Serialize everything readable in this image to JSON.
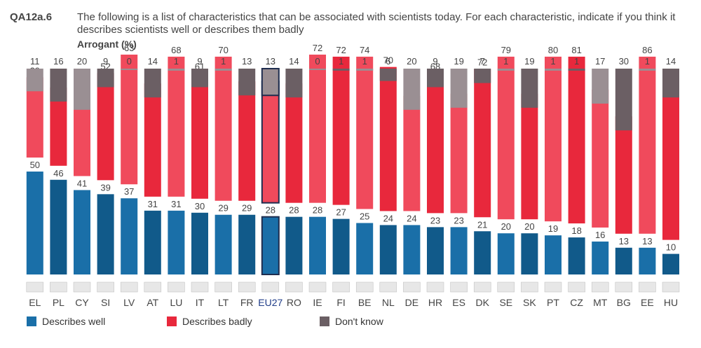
{
  "header": {
    "qid": "QA12a.6",
    "question": "The following is a list of characteristics that can be associated with scientists today. For each characteristic, indicate if you think it describes scientists well or describes them badly",
    "subtitle": "Arrogant  (%)"
  },
  "colors": {
    "describes_well": "#1a6fa8",
    "describes_well_dark": "#115a8a",
    "describes_badly": "#e8283c",
    "describes_badly_light": "#f04a5c",
    "dont_know": "#6b5f64",
    "dont_know_light": "#9a8f93",
    "highlight_border": "#1f2d4f"
  },
  "legend": {
    "describes_well": "Describes well",
    "describes_badly": "Describes badly",
    "dont_know": "Don't know"
  },
  "chart_data": {
    "type": "bar",
    "stacked": true,
    "categories": [
      "EL",
      "PL",
      "CY",
      "SI",
      "LV",
      "AT",
      "LU",
      "IT",
      "LT",
      "FR",
      "EU27",
      "RO",
      "IE",
      "FI",
      "BE",
      "NL",
      "DE",
      "HR",
      "ES",
      "DK",
      "SE",
      "SK",
      "PT",
      "CZ",
      "MT",
      "BG",
      "EE",
      "HU"
    ],
    "highlight": "EU27",
    "series": [
      {
        "name": "Describes well",
        "values": [
          50,
          46,
          41,
          39,
          37,
          31,
          31,
          30,
          29,
          29,
          28,
          28,
          28,
          27,
          25,
          24,
          24,
          23,
          23,
          21,
          20,
          20,
          19,
          18,
          16,
          13,
          13,
          10
        ]
      },
      {
        "name": "Describes badly",
        "values": [
          39,
          38,
          39,
          52,
          63,
          55,
          68,
          61,
          70,
          58,
          59,
          58,
          72,
          72,
          74,
          70,
          56,
          68,
          58,
          72,
          79,
          61,
          80,
          81,
          67,
          57,
          86,
          76
        ]
      },
      {
        "name": "Don't know",
        "values": [
          11,
          16,
          20,
          9,
          0,
          14,
          1,
          9,
          1,
          13,
          13,
          14,
          0,
          1,
          1,
          6,
          20,
          9,
          19,
          7,
          1,
          19,
          1,
          1,
          17,
          30,
          1,
          14
        ]
      }
    ],
    "ylim": [
      0,
      100
    ]
  }
}
